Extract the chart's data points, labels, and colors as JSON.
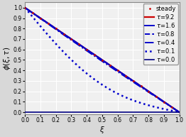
{
  "title": "",
  "xlabel": "$\\xi$",
  "ylabel": "$\\phi(\\xi, \\tau)$",
  "xlim": [
    0.0,
    1.0
  ],
  "ylim": [
    -0.02,
    1.05
  ],
  "xticks": [
    0.0,
    0.1,
    0.2,
    0.3,
    0.4,
    0.5,
    0.6,
    0.7,
    0.8,
    0.9,
    1.0
  ],
  "yticks": [
    0.0,
    0.1,
    0.2,
    0.3,
    0.4,
    0.5,
    0.6,
    0.7,
    0.8,
    0.9,
    1.0
  ],
  "background_color": "#d8d8d8",
  "plot_bg_color": "#f0f0f0",
  "grid_color": "white",
  "curves": [
    {
      "tau": 9.2,
      "color": "#cc0000",
      "linestyle": "-",
      "linewidth": 1.6,
      "label": "$\\tau$=9.2"
    },
    {
      "tau": 1.6,
      "color": "#0000cc",
      "linestyle": "-",
      "linewidth": 1.4,
      "label": "$\\tau$=1.6"
    },
    {
      "tau": 0.8,
      "color": "#0000cc",
      "linestyle": "--",
      "linewidth": 1.4,
      "label": "$\\tau$=0.8"
    },
    {
      "tau": 0.4,
      "color": "#0000cc",
      "linestyle": "-.",
      "linewidth": 1.4,
      "label": "$\\tau$=0.4"
    },
    {
      "tau": 0.1,
      "color": "#0000cc",
      "linestyle": ":",
      "linewidth": 1.8,
      "label": "$\\tau$=0.1"
    },
    {
      "tau": 0.0,
      "color": "#000080",
      "linestyle": "-",
      "linewidth": 1.2,
      "label": "$\\tau$=0.0"
    }
  ],
  "steady_color": "#cc0000",
  "steady_marker": ".",
  "steady_label": "steady",
  "legend_fontsize": 6.0,
  "axis_fontsize": 7.5,
  "tick_fontsize": 5.5
}
